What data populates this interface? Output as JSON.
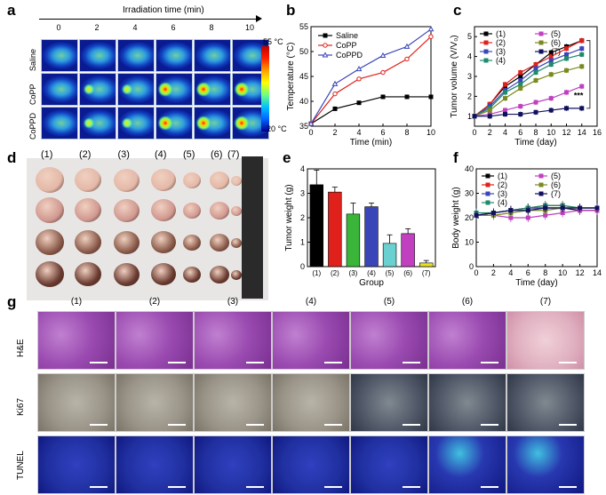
{
  "panels": {
    "a": "a",
    "b": "b",
    "c": "c",
    "d": "d",
    "e": "e",
    "f": "f",
    "g": "g"
  },
  "panel_a": {
    "title": "Irradiation time (min)",
    "times": [
      "0",
      "2",
      "4",
      "6",
      "8",
      "10"
    ],
    "rows": [
      "Saline",
      "CoPP",
      "CoPPD"
    ],
    "scale_max": "55 °C",
    "scale_min": "20 °C"
  },
  "panel_d": {
    "groups": [
      "(1)",
      "(2)",
      "(3)",
      "(4)",
      "(5)",
      "(6)",
      "(7)"
    ]
  },
  "panel_g": {
    "columns": [
      "(1)",
      "(2)",
      "(3)",
      "(4)",
      "(5)",
      "(6)",
      "(7)"
    ],
    "rows": [
      "H&E",
      "Ki67",
      "TUNEL"
    ]
  },
  "chart_data": [
    {
      "id": "b",
      "type": "line",
      "xlabel": "Time (min)",
      "ylabel": "Temperature (°C)",
      "xlim": [
        0,
        10
      ],
      "ylim": [
        35,
        55
      ],
      "xticks": [
        0,
        2,
        4,
        6,
        8,
        10
      ],
      "yticks": [
        35,
        40,
        45,
        50,
        55
      ],
      "x": [
        0,
        2,
        4,
        6,
        8,
        10
      ],
      "series": [
        {
          "name": "Saline",
          "color": "#000000",
          "marker": "square",
          "values": [
            35.5,
            38.5,
            39.7,
            40.9,
            40.9,
            40.9
          ]
        },
        {
          "name": "CoPP",
          "color": "#e0201b",
          "marker": "circle",
          "values": [
            35.5,
            41.5,
            44.5,
            45.8,
            48.5,
            53.0
          ]
        },
        {
          "name": "CoPPD",
          "color": "#3a46b8",
          "marker": "triangle",
          "values": [
            35.5,
            43.5,
            46.5,
            49.2,
            51.0,
            54.5
          ]
        }
      ],
      "legend": "top-left"
    },
    {
      "id": "c",
      "type": "line",
      "xlabel": "Time (day)",
      "ylabel": "Tumor volume (V/V₀)",
      "xlim": [
        0,
        16
      ],
      "ylim": [
        0.5,
        5.5
      ],
      "xticks": [
        0,
        2,
        4,
        6,
        8,
        10,
        12,
        14,
        16
      ],
      "yticks": [
        1,
        2,
        3,
        4,
        5
      ],
      "x": [
        0,
        2,
        4,
        6,
        8,
        10,
        12,
        14
      ],
      "annotation": "***",
      "series": [
        {
          "name": "(1)",
          "color": "#000000",
          "values": [
            1.0,
            1.6,
            2.5,
            3.0,
            3.6,
            4.2,
            4.5,
            4.8
          ]
        },
        {
          "name": "(2)",
          "color": "#e0201b",
          "values": [
            1.0,
            1.6,
            2.6,
            3.2,
            3.6,
            4.0,
            4.4,
            4.8
          ]
        },
        {
          "name": "(3)",
          "color": "#3a46b8",
          "values": [
            1.0,
            1.5,
            2.3,
            2.8,
            3.4,
            3.8,
            4.1,
            4.4
          ]
        },
        {
          "name": "(4)",
          "color": "#1e8a6e",
          "values": [
            1.0,
            1.4,
            2.2,
            2.6,
            3.2,
            3.6,
            3.9,
            4.1
          ]
        },
        {
          "name": "(5)",
          "color": "#c040c0",
          "values": [
            1.0,
            1.1,
            1.3,
            1.5,
            1.7,
            1.9,
            2.2,
            2.5
          ]
        },
        {
          "name": "(6)",
          "color": "#7a8a20",
          "values": [
            1.0,
            1.3,
            1.9,
            2.4,
            2.8,
            3.1,
            3.3,
            3.5
          ]
        },
        {
          "name": "(7)",
          "color": "#101060",
          "values": [
            1.0,
            1.0,
            1.1,
            1.1,
            1.2,
            1.3,
            1.4,
            1.4
          ]
        }
      ]
    },
    {
      "id": "e",
      "type": "bar",
      "xlabel": "Group",
      "ylabel": "Tumor weight (g)",
      "ylim": [
        0,
        4
      ],
      "yticks": [
        0,
        1,
        2,
        3,
        4
      ],
      "categories": [
        "(1)",
        "(2)",
        "(3)",
        "(4)",
        "(5)",
        "(6)",
        "(7)"
      ],
      "values": [
        3.35,
        3.05,
        2.15,
        2.45,
        0.95,
        1.35,
        0.15
      ],
      "errors": [
        0.6,
        0.2,
        0.45,
        0.15,
        0.35,
        0.2,
        0.1
      ],
      "colors": [
        "#000000",
        "#e0201b",
        "#3ab53a",
        "#3a46b8",
        "#6ad0d0",
        "#c040c0",
        "#e8e020"
      ]
    },
    {
      "id": "f",
      "type": "line",
      "xlabel": "Time (day)",
      "ylabel": "Body weight (g)",
      "xlim": [
        0,
        14
      ],
      "ylim": [
        0,
        40
      ],
      "xticks": [
        0,
        2,
        4,
        6,
        8,
        10,
        12,
        14
      ],
      "yticks": [
        0,
        10,
        20,
        30,
        40
      ],
      "x": [
        0,
        2,
        4,
        6,
        8,
        10,
        12,
        14
      ],
      "series": [
        {
          "name": "(1)",
          "color": "#000000",
          "values": [
            21,
            22,
            23,
            24,
            24,
            24,
            23,
            23
          ]
        },
        {
          "name": "(2)",
          "color": "#e0201b",
          "values": [
            21,
            22,
            23,
            24,
            25,
            25,
            24,
            24
          ]
        },
        {
          "name": "(3)",
          "color": "#3a46b8",
          "values": [
            21,
            22,
            23,
            24,
            24,
            24,
            24,
            24
          ]
        },
        {
          "name": "(4)",
          "color": "#1e8a6e",
          "values": [
            22,
            22,
            23,
            24,
            25,
            25,
            24,
            24
          ]
        },
        {
          "name": "(5)",
          "color": "#c040c0",
          "values": [
            21,
            21,
            20,
            20,
            21,
            22,
            23,
            23
          ]
        },
        {
          "name": "(6)",
          "color": "#7a8a20",
          "values": [
            21,
            21,
            22,
            23,
            23,
            24,
            24,
            24
          ]
        },
        {
          "name": "(7)",
          "color": "#101060",
          "values": [
            21,
            22,
            23,
            23,
            24,
            24,
            24,
            24
          ]
        }
      ]
    }
  ]
}
